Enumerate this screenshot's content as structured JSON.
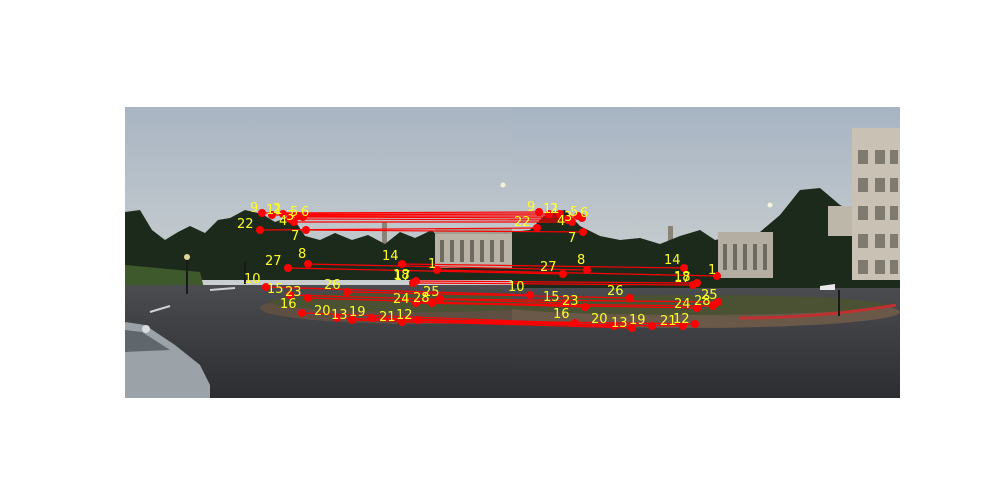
{
  "figure": {
    "description_type": "feature-match visualization of two stitched panorama photos",
    "line_color": "#ff0000",
    "point_color": "#ff0000",
    "label_color": "#ffff22"
  },
  "matches": [
    {
      "label": "1"
    },
    {
      "label": "2"
    },
    {
      "label": "3"
    },
    {
      "label": "4"
    },
    {
      "label": "5"
    },
    {
      "label": "6"
    },
    {
      "label": "7"
    },
    {
      "label": "8"
    },
    {
      "label": "9"
    },
    {
      "label": "10"
    },
    {
      "label": "11"
    },
    {
      "label": "12"
    },
    {
      "label": "13"
    },
    {
      "label": "14"
    },
    {
      "label": "15"
    },
    {
      "label": "16"
    },
    {
      "label": "17"
    },
    {
      "label": "18"
    },
    {
      "label": "19"
    },
    {
      "label": "20"
    },
    {
      "label": "21"
    },
    {
      "label": "22"
    },
    {
      "label": "23"
    },
    {
      "label": "24"
    },
    {
      "label": "25"
    },
    {
      "label": "26"
    },
    {
      "label": "27"
    },
    {
      "label": "28"
    }
  ]
}
